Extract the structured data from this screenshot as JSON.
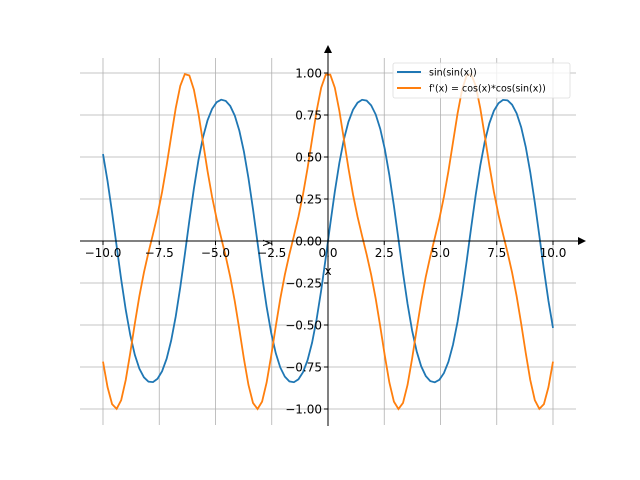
{
  "chart_data": {
    "type": "line",
    "title": "",
    "xlabel": "x",
    "ylabel": "y",
    "xlim": [
      -11,
      11
    ],
    "ylim": [
      -1.1,
      1.1
    ],
    "grid": true,
    "legend_placement": "top-right",
    "x": {
      "start": -10,
      "stop": 10,
      "num": 100
    },
    "xticks": [
      -10,
      -7.5,
      -5,
      -2.5,
      0,
      2.5,
      5,
      7.5,
      10
    ],
    "xtick_labels": [
      "−10.0",
      "−7.5",
      "−5.0",
      "−2.5",
      "0.0",
      "2.5",
      "5.0",
      "7.5",
      "10.0"
    ],
    "yticks": [
      1,
      0.75,
      0.5,
      0.25,
      0,
      -0.25,
      -0.5,
      -0.75,
      -1
    ],
    "ytick_labels": [
      "1.00",
      "0.75",
      "0.50",
      "0.25",
      "0.00",
      "−0.25",
      "−0.50",
      "−0.75",
      "−1.00"
    ],
    "series": [
      {
        "name": "sin(sin(x))",
        "expr": "sin(sin(x))",
        "color": "#1f77b4"
      },
      {
        "name": "f'(x) = cos(x)*cos(sin(x))",
        "expr": "cos(x)*cos(sin(x))",
        "color": "#ff7f0e"
      }
    ]
  }
}
